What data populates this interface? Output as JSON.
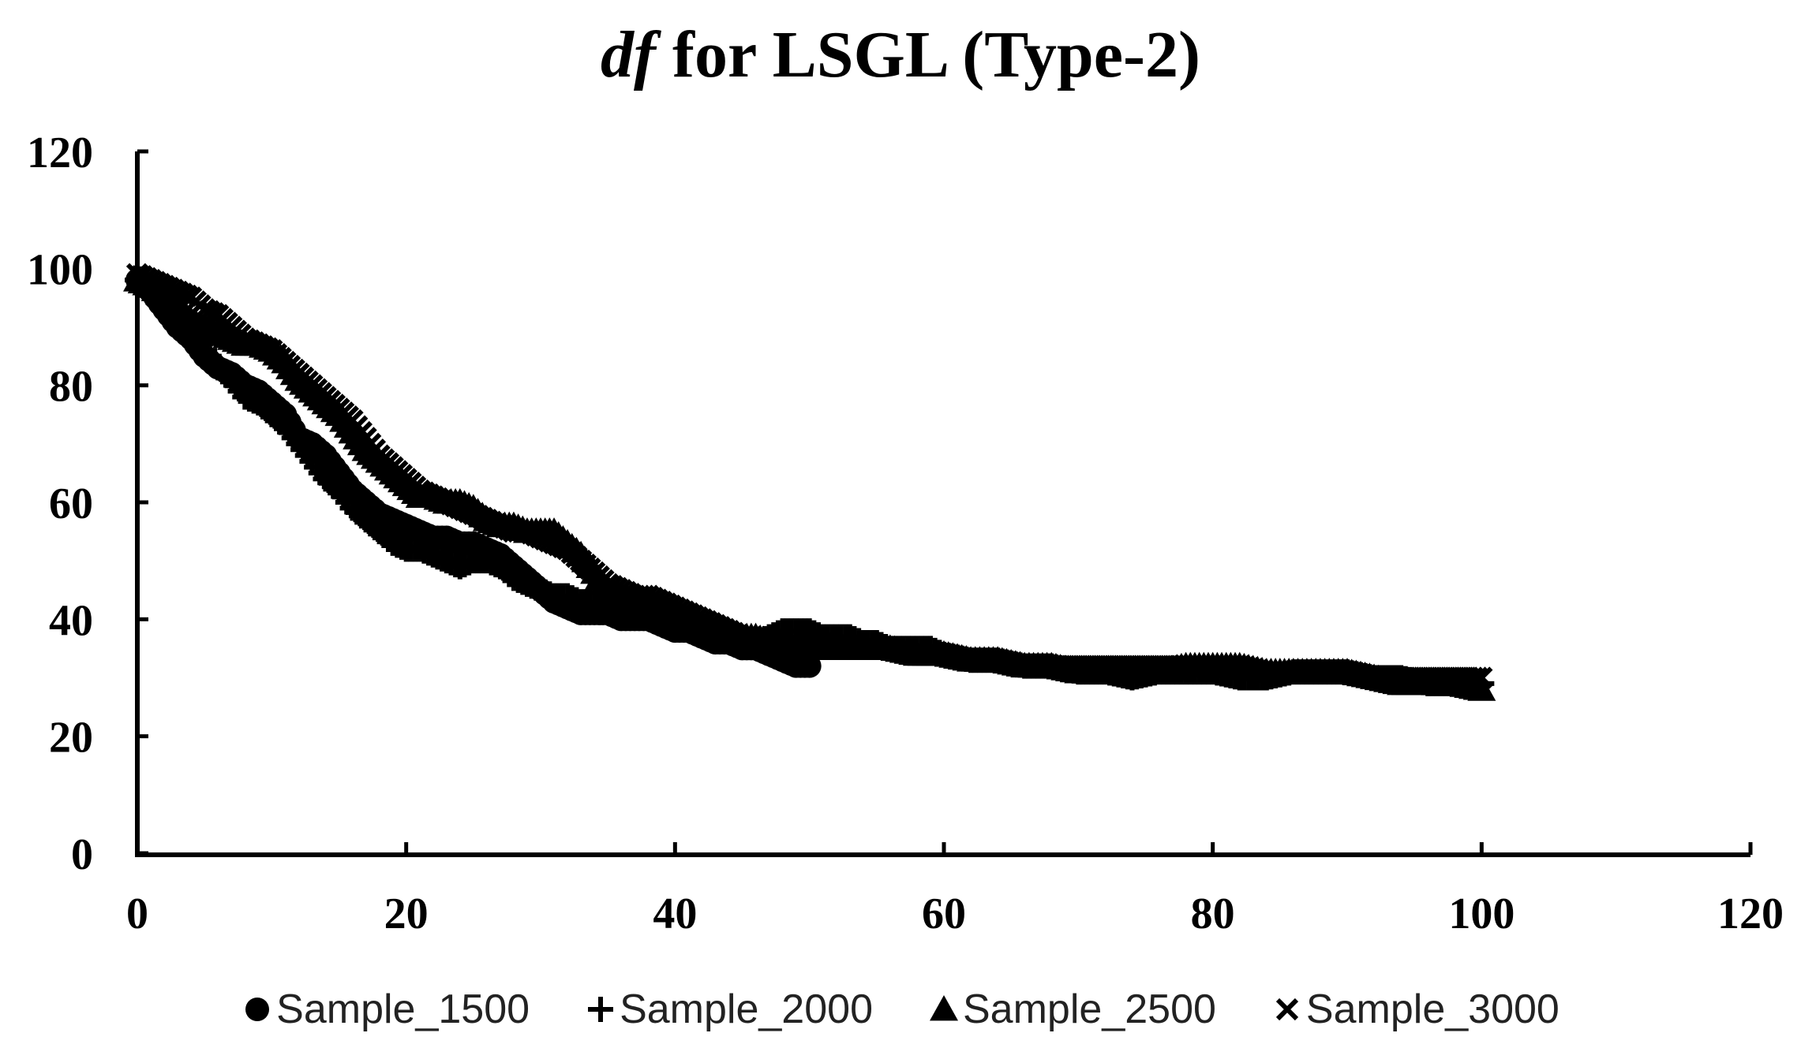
{
  "chart_data": {
    "type": "scatter",
    "title_italic": "df",
    "title_rest": " for LSGL (Type-2)",
    "xlabel": "",
    "ylabel": "",
    "xlim": [
      0,
      120
    ],
    "ylim": [
      0,
      120
    ],
    "x_ticks": [
      0,
      20,
      40,
      60,
      80,
      100,
      120
    ],
    "y_ticks": [
      0,
      20,
      40,
      60,
      80,
      100,
      120
    ],
    "grid": false,
    "legend_position": "bottom",
    "series": [
      {
        "name": "Sample_1500",
        "marker": "circle",
        "x": [
          0,
          1,
          2,
          3,
          4,
          5,
          6,
          7,
          8,
          9,
          10,
          11,
          12,
          13,
          14,
          15,
          16,
          17,
          18,
          19,
          20,
          21,
          22,
          23,
          24,
          25,
          26,
          27,
          28,
          29,
          30,
          31,
          32,
          33,
          34,
          35,
          36,
          37,
          38,
          39,
          40,
          41,
          42,
          43,
          44,
          45,
          46,
          47,
          48,
          49,
          50
        ],
        "y": [
          98,
          96,
          93,
          90,
          88,
          85,
          83,
          82,
          80,
          79,
          77,
          75,
          71,
          70,
          68,
          65,
          62,
          60,
          58,
          57,
          56,
          55,
          54,
          54,
          53,
          53,
          52,
          51,
          49,
          47,
          45,
          43,
          42,
          41,
          41,
          41,
          40,
          40,
          40,
          39,
          38,
          38,
          37,
          36,
          36,
          35,
          35,
          34,
          33,
          32,
          32
        ]
      },
      {
        "name": "Sample_2000",
        "marker": "plus",
        "x": [
          0,
          1,
          2,
          3,
          4,
          5,
          6,
          7,
          8,
          9,
          10,
          11,
          12,
          13,
          14,
          15,
          16,
          17,
          18,
          19,
          20,
          21,
          22,
          23,
          24,
          25,
          26,
          27,
          28,
          29,
          30,
          31,
          32,
          33,
          34,
          35,
          36,
          37,
          38,
          39,
          40,
          41,
          42,
          43,
          44,
          45,
          46,
          47,
          48,
          49,
          50,
          51,
          52,
          53,
          54,
          55,
          56,
          57,
          58,
          59,
          60,
          62,
          64,
          66,
          68,
          70,
          72,
          74,
          76,
          78,
          80,
          82,
          84,
          86,
          88,
          90,
          92,
          94,
          96,
          98,
          100
        ],
        "y": [
          98,
          97,
          95,
          92,
          89,
          86,
          83,
          81,
          78,
          77,
          75,
          73,
          70,
          67,
          64,
          62,
          59,
          57,
          55,
          53,
          52,
          52,
          51,
          50,
          49,
          50,
          50,
          49,
          47,
          46,
          45,
          44,
          44,
          43,
          43,
          42,
          42,
          41,
          41,
          40,
          40,
          39,
          38,
          37,
          37,
          36,
          36,
          37,
          38,
          38,
          38,
          37,
          37,
          37,
          36,
          36,
          35,
          35,
          35,
          35,
          34,
          33,
          33,
          32,
          32,
          31,
          31,
          30,
          31,
          31,
          31,
          30,
          30,
          31,
          31,
          31,
          30,
          30,
          29,
          29,
          29
        ]
      },
      {
        "name": "Sample_2500",
        "marker": "triangle",
        "x": [
          0,
          1,
          2,
          3,
          4,
          5,
          6,
          7,
          8,
          9,
          10,
          11,
          12,
          13,
          14,
          15,
          16,
          17,
          18,
          19,
          20,
          21,
          22,
          23,
          24,
          25,
          26,
          27,
          28,
          29,
          30,
          31,
          32,
          33,
          34,
          35,
          36,
          37,
          38,
          39,
          40,
          41,
          42,
          43,
          44,
          45,
          46,
          47,
          48,
          49,
          50,
          52,
          54,
          56,
          58,
          60,
          62,
          64,
          66,
          68,
          70,
          72,
          74,
          76,
          78,
          80,
          82,
          84,
          86,
          88,
          90,
          92,
          94,
          96,
          98,
          100
        ],
        "y": [
          98,
          97,
          95,
          93,
          91,
          90,
          89,
          88,
          87,
          87,
          86,
          84,
          81,
          79,
          77,
          75,
          72,
          69,
          67,
          65,
          63,
          61,
          61,
          60,
          60,
          59,
          57,
          56,
          56,
          55,
          55,
          55,
          53,
          51,
          48,
          45,
          44,
          43,
          43,
          42,
          41,
          40,
          39,
          38,
          38,
          37,
          37,
          36,
          36,
          35,
          35,
          35,
          35,
          35,
          34,
          34,
          33,
          33,
          32,
          32,
          31,
          31,
          31,
          31,
          32,
          32,
          32,
          31,
          31,
          31,
          31,
          30,
          29,
          29,
          29,
          28
        ]
      },
      {
        "name": "Sample_3000",
        "marker": "x",
        "x": [
          0,
          1,
          2,
          3,
          4,
          5,
          6,
          7,
          8,
          9,
          10,
          11,
          12,
          13,
          14,
          15,
          16,
          17,
          18,
          19,
          20,
          21,
          22,
          23,
          24,
          25,
          26,
          27,
          28,
          29,
          30,
          31,
          32,
          33,
          34,
          35,
          36,
          37,
          38,
          39,
          40,
          41,
          42,
          43,
          44,
          45,
          46,
          47,
          48,
          49,
          50,
          52,
          54,
          56,
          58,
          60,
          62,
          64,
          66,
          68,
          70,
          72,
          74,
          76,
          78,
          80,
          82,
          84,
          86,
          88,
          90,
          92,
          94,
          96,
          98,
          100
        ],
        "y": [
          99,
          98,
          97,
          96,
          95,
          93,
          92,
          90,
          88,
          87,
          86,
          84,
          82,
          80,
          78,
          76,
          74,
          71,
          68,
          66,
          64,
          62,
          61,
          60,
          59,
          58,
          57,
          56,
          55,
          55,
          54,
          53,
          52,
          50,
          48,
          46,
          45,
          44,
          44,
          43,
          42,
          41,
          40,
          39,
          38,
          37,
          37,
          36,
          36,
          35,
          35,
          35,
          35,
          35,
          34,
          34,
          33,
          33,
          32,
          32,
          32,
          32,
          32,
          32,
          32,
          32,
          32,
          31,
          31,
          31,
          31,
          30,
          30,
          30,
          30,
          30
        ]
      }
    ]
  }
}
